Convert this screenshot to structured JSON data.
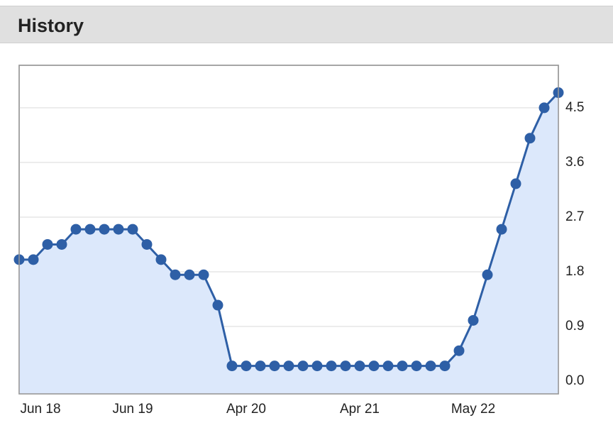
{
  "header": {
    "title": "History"
  },
  "chart_data": {
    "type": "line",
    "categories": [
      "Jun 18",
      null,
      null,
      null,
      null,
      null,
      null,
      null,
      "Jun 19",
      null,
      null,
      null,
      null,
      null,
      null,
      null,
      "Apr 20",
      null,
      null,
      null,
      null,
      null,
      null,
      null,
      "Apr 21",
      null,
      null,
      null,
      null,
      null,
      null,
      null,
      "May 22",
      null,
      null,
      null,
      null,
      null,
      null
    ],
    "series": [
      {
        "color": "#2e5fa6",
        "fill": "#dce8fb",
        "values": [
          2.0,
          2.0,
          2.25,
          2.25,
          2.5,
          2.5,
          2.5,
          2.5,
          2.5,
          2.25,
          2.0,
          1.75,
          1.75,
          1.75,
          1.25,
          0.25,
          0.25,
          0.25,
          0.25,
          0.25,
          0.25,
          0.25,
          0.25,
          0.25,
          0.25,
          0.25,
          0.25,
          0.25,
          0.25,
          0.25,
          0.25,
          0.5,
          1.0,
          1.75,
          2.5,
          3.25,
          4.0,
          4.5,
          4.75
        ]
      }
    ],
    "ylim": [
      -0.21,
      5.2
    ],
    "yticks": [
      {
        "value": 0,
        "label": "0.0"
      },
      0.9,
      1.8,
      2.7,
      3.6,
      4.5
    ],
    "grid": true
  }
}
